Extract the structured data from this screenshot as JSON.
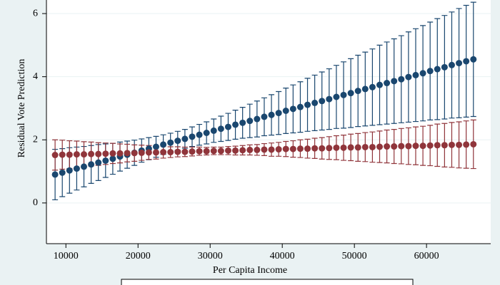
{
  "chart_data": {
    "type": "errorbar",
    "x_label": "Per Capita Income",
    "y_label": "Residual Vote Prediction",
    "x": [
      8500,
      9500,
      10500,
      11500,
      12500,
      13500,
      14500,
      15500,
      16500,
      17500,
      18500,
      19500,
      20500,
      21500,
      22500,
      23500,
      24500,
      25500,
      26500,
      27500,
      28500,
      29500,
      30500,
      31500,
      32500,
      33500,
      34500,
      35500,
      36500,
      37500,
      38500,
      39500,
      40500,
      41500,
      42500,
      43500,
      44500,
      45500,
      46500,
      47500,
      48500,
      49500,
      50500,
      51500,
      52500,
      53500,
      54500,
      55500,
      56500,
      57500,
      58500,
      59500,
      60500,
      61500,
      62500,
      63500,
      64500,
      65500,
      66500
    ],
    "series": [
      {
        "color": "#1a476f",
        "values": [
          0.9,
          0.96,
          1.03,
          1.09,
          1.15,
          1.22,
          1.28,
          1.34,
          1.4,
          1.47,
          1.53,
          1.59,
          1.66,
          1.72,
          1.78,
          1.85,
          1.91,
          1.97,
          2.03,
          2.1,
          2.16,
          2.22,
          2.29,
          2.35,
          2.41,
          2.48,
          2.54,
          2.6,
          2.66,
          2.73,
          2.79,
          2.85,
          2.92,
          2.98,
          3.04,
          3.11,
          3.17,
          3.23,
          3.29,
          3.36,
          3.42,
          3.48,
          3.55,
          3.61,
          3.67,
          3.74,
          3.8,
          3.86,
          3.92,
          3.99,
          4.05,
          4.11,
          4.18,
          4.24,
          4.3,
          4.37,
          4.43,
          4.49,
          4.55
        ],
        "errors": [
          0.8,
          0.76,
          0.72,
          0.68,
          0.64,
          0.6,
          0.57,
          0.53,
          0.49,
          0.46,
          0.43,
          0.4,
          0.37,
          0.35,
          0.33,
          0.31,
          0.3,
          0.3,
          0.3,
          0.31,
          0.33,
          0.35,
          0.37,
          0.4,
          0.43,
          0.46,
          0.49,
          0.53,
          0.57,
          0.6,
          0.64,
          0.68,
          0.72,
          0.76,
          0.8,
          0.84,
          0.88,
          0.92,
          0.96,
          1.0,
          1.05,
          1.09,
          1.13,
          1.17,
          1.21,
          1.26,
          1.3,
          1.34,
          1.38,
          1.43,
          1.47,
          1.51,
          1.55,
          1.6,
          1.64,
          1.68,
          1.73,
          1.77,
          1.81
        ]
      },
      {
        "color": "#90353b",
        "values": [
          1.52,
          1.53,
          1.53,
          1.54,
          1.54,
          1.55,
          1.55,
          1.56,
          1.57,
          1.57,
          1.58,
          1.58,
          1.59,
          1.6,
          1.6,
          1.61,
          1.61,
          1.62,
          1.62,
          1.63,
          1.64,
          1.64,
          1.65,
          1.65,
          1.66,
          1.66,
          1.67,
          1.68,
          1.68,
          1.69,
          1.69,
          1.7,
          1.71,
          1.71,
          1.72,
          1.72,
          1.73,
          1.73,
          1.74,
          1.75,
          1.75,
          1.76,
          1.76,
          1.77,
          1.77,
          1.78,
          1.79,
          1.79,
          1.8,
          1.8,
          1.81,
          1.81,
          1.82,
          1.83,
          1.83,
          1.84,
          1.84,
          1.85,
          1.86
        ],
        "errors": [
          0.48,
          0.46,
          0.44,
          0.42,
          0.4,
          0.38,
          0.36,
          0.34,
          0.32,
          0.3,
          0.28,
          0.26,
          0.24,
          0.22,
          0.21,
          0.19,
          0.17,
          0.16,
          0.15,
          0.14,
          0.13,
          0.12,
          0.12,
          0.12,
          0.13,
          0.14,
          0.15,
          0.16,
          0.17,
          0.19,
          0.21,
          0.22,
          0.24,
          0.26,
          0.28,
          0.3,
          0.32,
          0.34,
          0.36,
          0.38,
          0.4,
          0.42,
          0.44,
          0.46,
          0.48,
          0.5,
          0.52,
          0.54,
          0.56,
          0.58,
          0.6,
          0.62,
          0.64,
          0.67,
          0.69,
          0.71,
          0.73,
          0.75,
          0.77
        ]
      }
    ],
    "xlim": [
      7300,
      68900
    ],
    "xticks": [
      10000,
      20000,
      30000,
      40000,
      50000,
      60000
    ],
    "ylim": [
      -1.29,
      6.43
    ],
    "yticks": [
      0,
      2,
      4,
      6
    ],
    "grid": true
  }
}
